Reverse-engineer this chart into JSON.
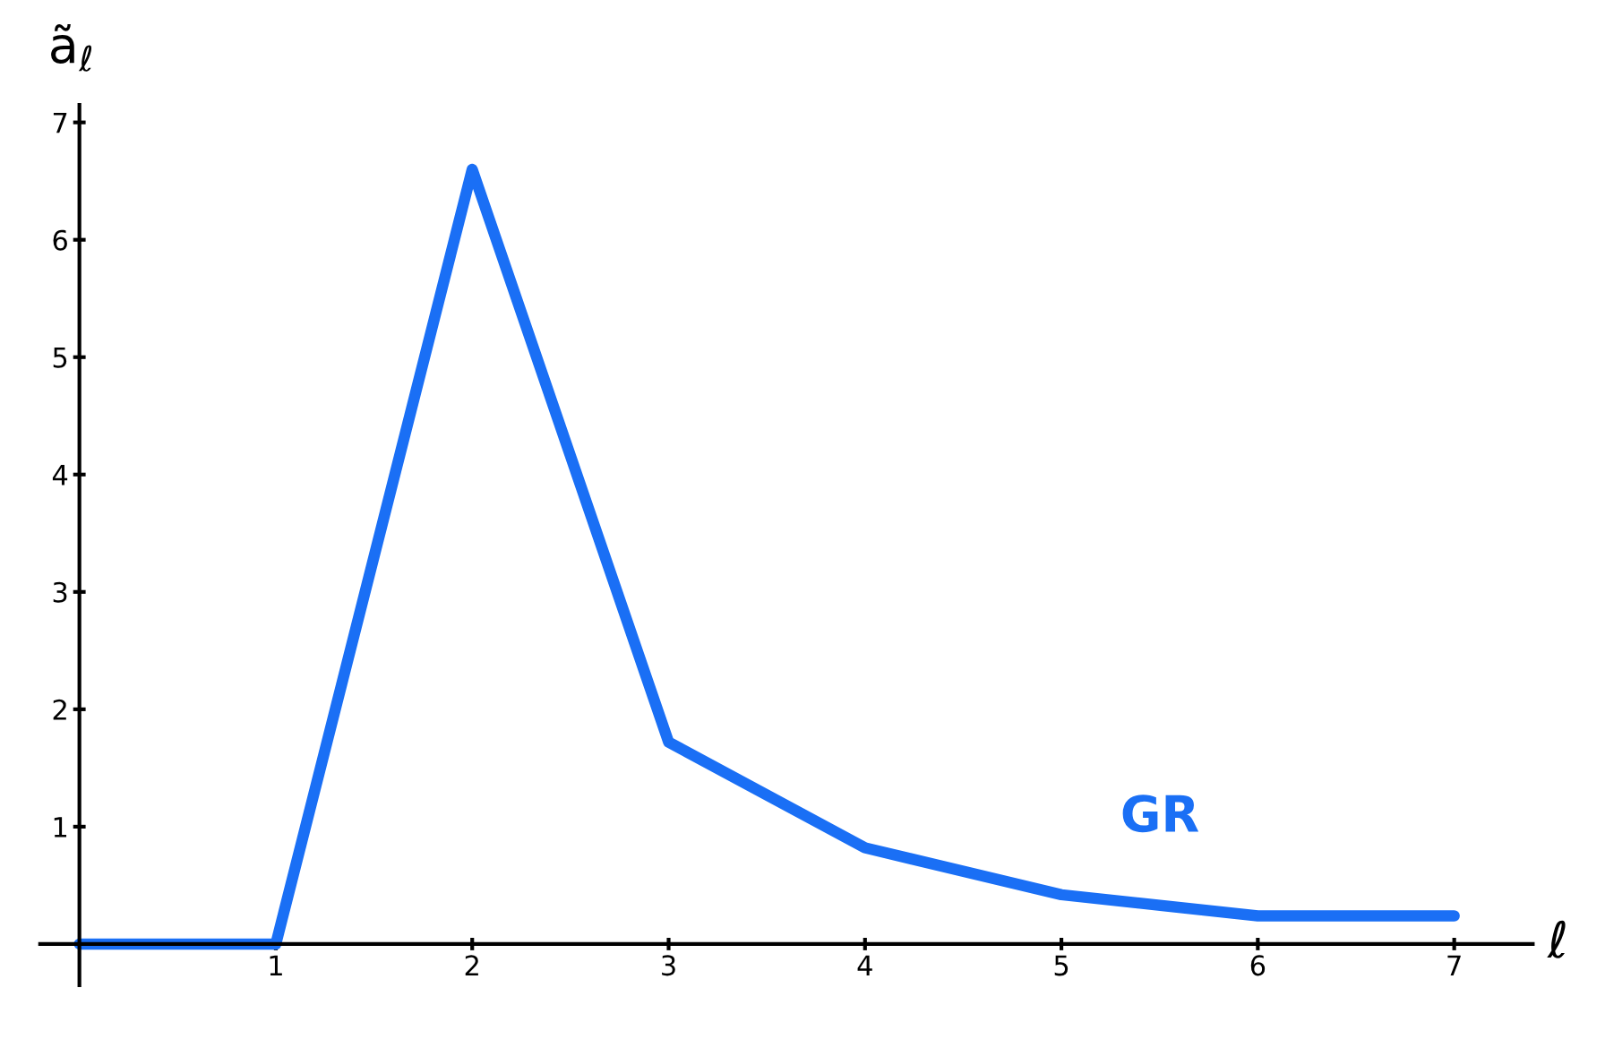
{
  "chart_data": {
    "type": "line",
    "xlabel": "ℓ",
    "ylabel": "ã$_{ℓ}$",
    "x": [
      0,
      1,
      2,
      3,
      4,
      5,
      6,
      7
    ],
    "series": [
      {
        "name": "GR",
        "color": "#1a6ff5",
        "values": [
          0,
          0,
          6.6,
          1.72,
          0.82,
          0.42,
          0.24,
          0.24
        ]
      }
    ],
    "xlim": [
      -0.2,
      7.4
    ],
    "ylim": [
      -0.35,
      7.15
    ],
    "xticks": [
      1,
      2,
      3,
      4,
      5,
      6,
      7
    ],
    "yticks": [
      1,
      2,
      3,
      4,
      5,
      6,
      7
    ],
    "grid": false,
    "legend": false,
    "line_style": "solid"
  }
}
